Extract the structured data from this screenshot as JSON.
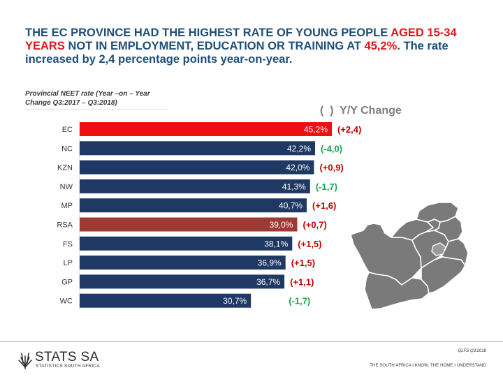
{
  "headline": {
    "part1": "THE EC PROVINCE HAD THE HIGHEST RATE OF YOUNG PEOPLE ",
    "part2_red": "AGED 15-34 YEARS",
    "part3": " NOT IN EMPLOYMENT, EDUCATION OR TRAINING AT ",
    "part4_red": "45,2%",
    "part5": ". The rate increased by 2,4 percentage points year-on-year."
  },
  "chart_data": {
    "type": "bar",
    "orientation": "horizontal",
    "title": "Provincial NEET rate (Year –on – Year Change Q3:2017 – Q3:2018)",
    "legend_text": "(  )  Y/Y Change",
    "categories": [
      "EC",
      "NC",
      "KZN",
      "NW",
      "MP",
      "RSA",
      "FS",
      "LP",
      "GP",
      "WC"
    ],
    "values": [
      45.2,
      42.2,
      42.0,
      41.3,
      40.7,
      39.0,
      38.1,
      36.9,
      36.7,
      30.7
    ],
    "value_labels": [
      "45,2%",
      "42,2%",
      "42,0%",
      "41,3%",
      "40,7%",
      "39,0%",
      "38,1%",
      "36,9%",
      "36,7%",
      "30,7%"
    ],
    "changes": [
      2.4,
      -4.0,
      0.9,
      -1.7,
      1.6,
      0.7,
      1.5,
      1.5,
      1.1,
      -1.7
    ],
    "change_labels": [
      "(+2,4)",
      "(-4,0)",
      "(+0,9)",
      "(-1,7)",
      "(+1,6)",
      "(+0,7)",
      "(+1,5)",
      "(+1,5)",
      "(+1,1)",
      "(-1,7)"
    ],
    "bar_colors": [
      "#f00f0f",
      "#1f3864",
      "#1f3864",
      "#1f3864",
      "#1f3864",
      "#9e3a36",
      "#1f3864",
      "#1f3864",
      "#1f3864",
      "#1f3864"
    ],
    "change_colors": {
      "increase": "#c00000",
      "decrease": "#11a84a"
    },
    "xlim": [
      0,
      45.2
    ]
  },
  "footer": {
    "note": "QLFS Q3:2018",
    "slogan": "THE SOUTH AFRICA I KNOW, THE HOME I UNDERSTAND"
  },
  "logo": {
    "name": "STATS SA",
    "tagline": "STATISTICS SOUTH AFRICA"
  },
  "map": {
    "icon": "south-africa-provinces-map",
    "fill": "#7a7a7a",
    "border": "#ffffff"
  }
}
